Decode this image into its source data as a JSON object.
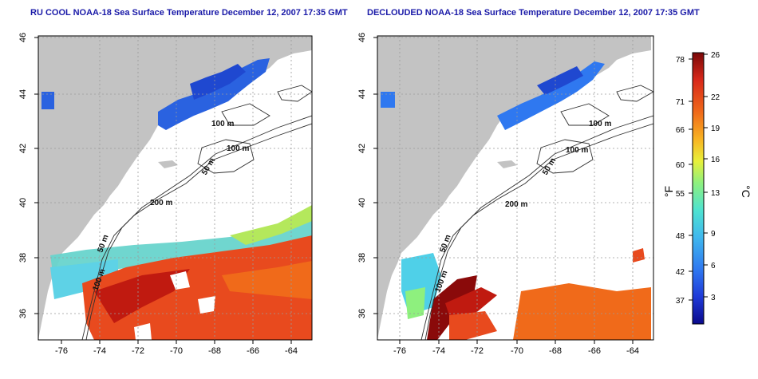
{
  "panels": [
    {
      "title": "RU COOL NOAA-18 Sea Surface Temperature December 12, 2007 17:35 GMT",
      "x_ticks": [
        "-76",
        "-74",
        "-72",
        "-70",
        "-68",
        "-66",
        "-64"
      ],
      "y_ticks": [
        "46",
        "44",
        "42",
        "40",
        "38",
        "36"
      ],
      "contour_labels": [
        "100 m",
        "100 m",
        "50 m",
        "200 m",
        "50 m",
        "100 m"
      ]
    },
    {
      "title": "DECLOUDED NOAA-18 Sea Surface Temperature December 12, 2007 17:35 GMT",
      "x_ticks": [
        "-76",
        "-74",
        "-72",
        "-70",
        "-68",
        "-66",
        "-64"
      ],
      "y_ticks": [
        "46",
        "44",
        "42",
        "40",
        "38",
        "36"
      ],
      "contour_labels": [
        "100 m",
        "100 m",
        "50 m",
        "200 m",
        "50 m",
        "100 m"
      ]
    }
  ],
  "colorbar": {
    "fahrenheit_ticks": [
      "78",
      "71",
      "66",
      "60",
      "55",
      "48",
      "42",
      "37"
    ],
    "celsius_ticks": [
      "26",
      "22",
      "19",
      "16",
      "13",
      "9",
      "6",
      "3"
    ],
    "fahrenheit_label": "°F",
    "celsius_label": "°C",
    "colors": [
      "#0a0a8c",
      "#1f3ad8",
      "#2f78f0",
      "#3fb8ee",
      "#4fe3d0",
      "#8ef07e",
      "#e8f03a",
      "#f8b422",
      "#f06a1a",
      "#d8281a",
      "#7a0808"
    ]
  },
  "colors": {
    "land": "#c3c3c3",
    "ocean": "#ffffff",
    "frame": "#000000",
    "grid": "#9a9a9a",
    "title": "#1a1aa8"
  }
}
